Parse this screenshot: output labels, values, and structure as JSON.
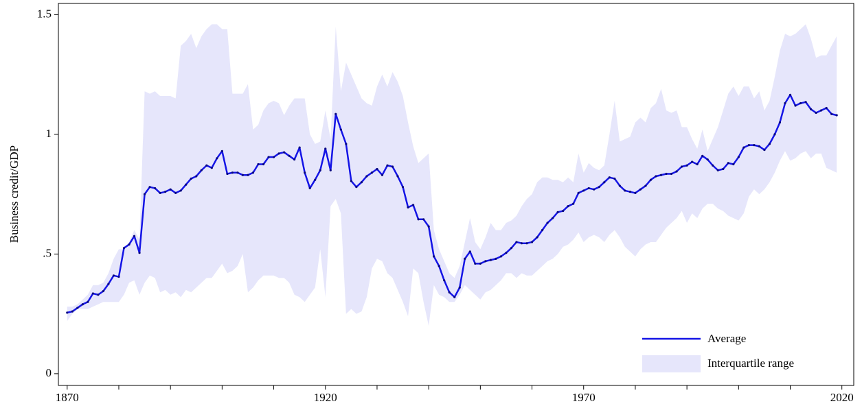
{
  "chart_data": {
    "type": "line",
    "y_label": "Business credit/GDP",
    "x": [
      1870,
      1871,
      1872,
      1873,
      1874,
      1875,
      1876,
      1877,
      1878,
      1879,
      1880,
      1881,
      1882,
      1883,
      1884,
      1885,
      1886,
      1887,
      1888,
      1889,
      1890,
      1891,
      1892,
      1893,
      1894,
      1895,
      1896,
      1897,
      1898,
      1899,
      1900,
      1901,
      1902,
      1903,
      1904,
      1905,
      1906,
      1907,
      1908,
      1909,
      1910,
      1911,
      1912,
      1913,
      1914,
      1915,
      1916,
      1917,
      1918,
      1919,
      1920,
      1921,
      1922,
      1923,
      1924,
      1925,
      1926,
      1927,
      1928,
      1929,
      1930,
      1931,
      1932,
      1933,
      1934,
      1935,
      1936,
      1937,
      1938,
      1939,
      1940,
      1941,
      1942,
      1943,
      1944,
      1945,
      1946,
      1947,
      1948,
      1949,
      1950,
      1951,
      1952,
      1953,
      1954,
      1955,
      1956,
      1957,
      1958,
      1959,
      1960,
      1961,
      1962,
      1963,
      1964,
      1965,
      1966,
      1967,
      1968,
      1969,
      1970,
      1971,
      1972,
      1973,
      1974,
      1975,
      1976,
      1977,
      1978,
      1979,
      1980,
      1981,
      1982,
      1983,
      1984,
      1985,
      1986,
      1987,
      1988,
      1989,
      1990,
      1991,
      1992,
      1993,
      1994,
      1995,
      1996,
      1997,
      1998,
      1999,
      2000,
      2001,
      2002,
      2003,
      2004,
      2005,
      2006,
      2007,
      2008,
      2009,
      2010,
      2011,
      2012,
      2013,
      2014,
      2015,
      2016,
      2017,
      2018,
      2019
    ],
    "series": [
      {
        "name": "Average",
        "color": "#1414e6",
        "values": [
          0.255,
          0.26,
          0.275,
          0.29,
          0.3,
          0.335,
          0.33,
          0.345,
          0.375,
          0.41,
          0.405,
          0.525,
          0.54,
          0.575,
          0.505,
          0.75,
          0.78,
          0.775,
          0.755,
          0.76,
          0.77,
          0.755,
          0.765,
          0.79,
          0.815,
          0.825,
          0.85,
          0.87,
          0.86,
          0.9,
          0.93,
          0.835,
          0.84,
          0.84,
          0.83,
          0.83,
          0.84,
          0.875,
          0.875,
          0.905,
          0.905,
          0.92,
          0.925,
          0.91,
          0.895,
          0.945,
          0.84,
          0.775,
          0.81,
          0.85,
          0.94,
          0.85,
          1.085,
          1.02,
          0.96,
          0.805,
          0.78,
          0.8,
          0.825,
          0.84,
          0.855,
          0.83,
          0.87,
          0.865,
          0.825,
          0.78,
          0.695,
          0.705,
          0.645,
          0.645,
          0.615,
          0.49,
          0.45,
          0.39,
          0.34,
          0.32,
          0.36,
          0.48,
          0.51,
          0.46,
          0.46,
          0.47,
          0.475,
          0.48,
          0.49,
          0.505,
          0.525,
          0.55,
          0.545,
          0.545,
          0.55,
          0.57,
          0.6,
          0.63,
          0.65,
          0.675,
          0.68,
          0.7,
          0.71,
          0.755,
          0.765,
          0.775,
          0.77,
          0.78,
          0.8,
          0.82,
          0.815,
          0.785,
          0.765,
          0.76,
          0.755,
          0.77,
          0.785,
          0.81,
          0.825,
          0.83,
          0.835,
          0.835,
          0.845,
          0.865,
          0.87,
          0.885,
          0.875,
          0.91,
          0.895,
          0.87,
          0.85,
          0.855,
          0.88,
          0.875,
          0.905,
          0.945,
          0.955,
          0.955,
          0.95,
          0.935,
          0.96,
          1.0,
          1.05,
          1.13,
          1.165,
          1.12,
          1.13,
          1.135,
          1.105,
          1.09,
          1.1,
          1.11,
          1.085,
          1.08
        ]
      },
      {
        "name": "Interquartile range",
        "color": "#e6e6fb",
        "lower": [
          0.22,
          0.25,
          0.27,
          0.27,
          0.27,
          0.28,
          0.29,
          0.3,
          0.3,
          0.3,
          0.3,
          0.33,
          0.38,
          0.39,
          0.33,
          0.38,
          0.41,
          0.4,
          0.34,
          0.35,
          0.33,
          0.34,
          0.32,
          0.35,
          0.34,
          0.36,
          0.38,
          0.4,
          0.4,
          0.43,
          0.46,
          0.42,
          0.43,
          0.45,
          0.5,
          0.34,
          0.36,
          0.39,
          0.41,
          0.41,
          0.41,
          0.4,
          0.4,
          0.38,
          0.33,
          0.32,
          0.3,
          0.33,
          0.36,
          0.52,
          0.32,
          0.7,
          0.73,
          0.67,
          0.25,
          0.27,
          0.25,
          0.26,
          0.32,
          0.44,
          0.48,
          0.47,
          0.42,
          0.4,
          0.35,
          0.3,
          0.24,
          0.44,
          0.42,
          0.3,
          0.2,
          0.37,
          0.33,
          0.32,
          0.3,
          0.3,
          0.33,
          0.37,
          0.35,
          0.33,
          0.31,
          0.34,
          0.35,
          0.37,
          0.39,
          0.42,
          0.42,
          0.4,
          0.42,
          0.41,
          0.41,
          0.43,
          0.45,
          0.47,
          0.48,
          0.5,
          0.53,
          0.54,
          0.56,
          0.59,
          0.55,
          0.57,
          0.58,
          0.57,
          0.55,
          0.58,
          0.6,
          0.57,
          0.53,
          0.51,
          0.49,
          0.52,
          0.54,
          0.55,
          0.55,
          0.58,
          0.61,
          0.63,
          0.65,
          0.68,
          0.63,
          0.67,
          0.65,
          0.69,
          0.71,
          0.71,
          0.69,
          0.68,
          0.66,
          0.65,
          0.64,
          0.67,
          0.74,
          0.77,
          0.75,
          0.77,
          0.8,
          0.84,
          0.89,
          0.93,
          0.89,
          0.9,
          0.92,
          0.93,
          0.9,
          0.92,
          0.92,
          0.86,
          0.85,
          0.84
        ],
        "upper": [
          0.28,
          0.28,
          0.29,
          0.31,
          0.33,
          0.37,
          0.37,
          0.38,
          0.42,
          0.48,
          0.52,
          0.52,
          0.55,
          0.6,
          0.56,
          1.18,
          1.17,
          1.18,
          1.16,
          1.16,
          1.16,
          1.15,
          1.37,
          1.39,
          1.42,
          1.36,
          1.41,
          1.44,
          1.46,
          1.46,
          1.44,
          1.44,
          1.17,
          1.17,
          1.17,
          1.21,
          1.02,
          1.04,
          1.1,
          1.13,
          1.14,
          1.13,
          1.08,
          1.12,
          1.15,
          1.15,
          1.15,
          1.0,
          0.96,
          0.97,
          1.1,
          0.98,
          1.45,
          1.18,
          1.3,
          1.25,
          1.2,
          1.15,
          1.13,
          1.12,
          1.2,
          1.25,
          1.2,
          1.26,
          1.22,
          1.16,
          1.05,
          0.95,
          0.88,
          0.9,
          0.92,
          0.6,
          0.52,
          0.47,
          0.42,
          0.4,
          0.45,
          0.55,
          0.65,
          0.55,
          0.52,
          0.57,
          0.63,
          0.6,
          0.6,
          0.63,
          0.64,
          0.66,
          0.7,
          0.73,
          0.75,
          0.8,
          0.82,
          0.82,
          0.81,
          0.81,
          0.8,
          0.82,
          0.8,
          0.92,
          0.84,
          0.88,
          0.86,
          0.85,
          0.87,
          1.0,
          1.14,
          0.97,
          0.98,
          0.99,
          1.05,
          1.07,
          1.05,
          1.11,
          1.13,
          1.19,
          1.1,
          1.09,
          1.1,
          1.03,
          1.03,
          0.98,
          0.94,
          1.02,
          0.93,
          0.98,
          1.03,
          1.1,
          1.17,
          1.2,
          1.16,
          1.2,
          1.2,
          1.15,
          1.18,
          1.1,
          1.14,
          1.24,
          1.35,
          1.42,
          1.41,
          1.42,
          1.44,
          1.46,
          1.4,
          1.32,
          1.33,
          1.33,
          1.37,
          1.41
        ]
      }
    ],
    "xlim": [
      1868.3,
      2022.3
    ],
    "xticks": [
      1870,
      1920,
      1970,
      2020
    ],
    "x_minor_ticks": [
      1880,
      1890,
      1900,
      1910,
      1930,
      1940,
      1950,
      1960,
      1980,
      1990,
      2000,
      2010
    ],
    "ylim": [
      -0.049,
      1.547
    ],
    "yticks": [
      0,
      {
        "value": 0.5,
        "label": ".5"
      },
      1,
      1.5
    ],
    "legend": "lower right"
  }
}
